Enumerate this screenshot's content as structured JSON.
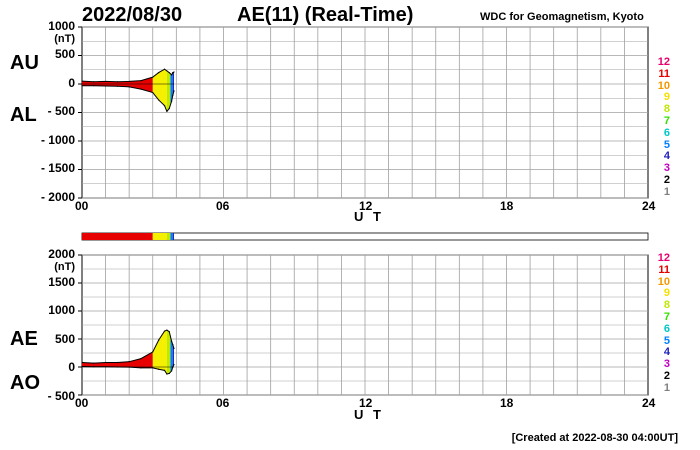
{
  "header": {
    "date": "2022/08/30",
    "title": "AE(11) (Real-Time)",
    "source": "WDC for Geomagnetism, Kyoto"
  },
  "footer": {
    "created": "[Created at 2022-08-30 04:00UT]"
  },
  "station_legend": [
    "12",
    "11",
    "10",
    "9",
    "8",
    "7",
    "6",
    "5",
    "4",
    "3",
    "2",
    "1"
  ],
  "colors": {
    "station": [
      "#e8006e",
      "#e60000",
      "#f39800",
      "#f5e000",
      "#bfe800",
      "#33e000",
      "#00c8c8",
      "#0080ff",
      "#2020c0",
      "#c000c0",
      "#000000",
      "#808080"
    ],
    "active_red": "#e60000",
    "active_yellow": "#f5f000",
    "grid": "#a0a0a0"
  },
  "chart_data": [
    {
      "type": "area",
      "panel": "AU / AL",
      "labels": [
        "AU",
        "AL"
      ],
      "unit_label": "(nT)",
      "xlabel": "U T",
      "x_ticks": [
        "00",
        "06",
        "12",
        "18",
        "24"
      ],
      "xlim": [
        0,
        24
      ],
      "ylim": [
        -2000,
        1000
      ],
      "y_ticks": [
        1000,
        500,
        0,
        -500,
        -1000,
        -1500,
        -2000
      ],
      "y_tick_labels": [
        "1000",
        "500",
        "0",
        "- 500",
        "- 1000",
        "- 1500",
        "- 2000"
      ],
      "grid": true,
      "x": [
        0,
        0.5,
        1.0,
        1.5,
        2.0,
        2.5,
        3.0,
        3.25,
        3.5,
        3.6,
        3.7,
        3.8,
        3.85,
        3.9
      ],
      "series": [
        {
          "name": "AU",
          "values": [
            50,
            40,
            45,
            40,
            45,
            60,
            120,
            200,
            260,
            230,
            200,
            160,
            200,
            210
          ]
        },
        {
          "name": "AL",
          "values": [
            -30,
            -30,
            -35,
            -40,
            -50,
            -90,
            -150,
            -280,
            -380,
            -480,
            -430,
            -300,
            -200,
            -120
          ]
        }
      ]
    },
    {
      "type": "area",
      "panel": "AE / AO",
      "labels": [
        "AE",
        "AO"
      ],
      "unit_label": "(nT)",
      "xlabel": "U T",
      "x_ticks": [
        "00",
        "06",
        "12",
        "18",
        "24"
      ],
      "xlim": [
        0,
        24
      ],
      "ylim": [
        -500,
        2000
      ],
      "y_ticks": [
        2000,
        1500,
        1000,
        500,
        0,
        -500
      ],
      "y_tick_labels": [
        "2000",
        "1500",
        "1000",
        "500",
        "0",
        "- 500"
      ],
      "grid": true,
      "x": [
        0,
        0.5,
        1.0,
        1.5,
        2.0,
        2.5,
        3.0,
        3.25,
        3.5,
        3.6,
        3.7,
        3.8,
        3.85,
        3.9
      ],
      "series": [
        {
          "name": "AE",
          "values": [
            80,
            70,
            80,
            80,
            95,
            150,
            270,
            480,
            640,
            660,
            630,
            460,
            400,
            330
          ]
        },
        {
          "name": "AO",
          "values": [
            10,
            5,
            5,
            0,
            -3,
            -15,
            -15,
            -40,
            -60,
            -125,
            -115,
            -70,
            0,
            45
          ]
        }
      ],
      "color_bands": [
        {
          "from": 0,
          "to": 3.0,
          "color": "#e60000"
        },
        {
          "from": 3.0,
          "to": 3.6,
          "color": "#f5f000"
        },
        {
          "from": 3.6,
          "to": 3.75,
          "color": "#bfe800"
        },
        {
          "from": 3.75,
          "to": 3.85,
          "color": "#0080ff"
        },
        {
          "from": 3.85,
          "to": 3.9,
          "color": "#2020c0"
        }
      ]
    }
  ],
  "status_bar": [
    {
      "from": 0,
      "to": 3.0,
      "color": "#e60000"
    },
    {
      "from": 3.0,
      "to": 3.6,
      "color": "#f5f000"
    },
    {
      "from": 3.6,
      "to": 3.75,
      "color": "#bfe800"
    },
    {
      "from": 3.75,
      "to": 3.85,
      "color": "#0080ff"
    },
    {
      "from": 3.85,
      "to": 3.9,
      "color": "#2020c0"
    }
  ]
}
